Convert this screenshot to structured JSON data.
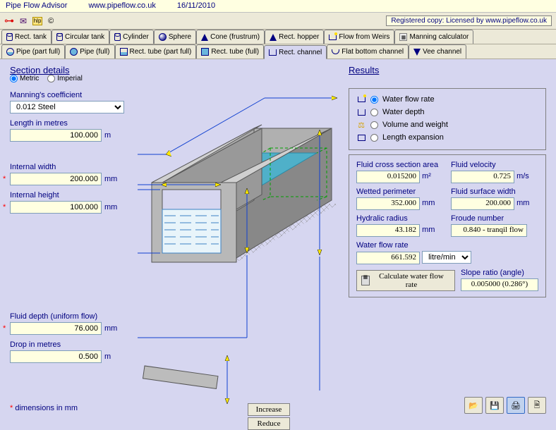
{
  "titlebar": {
    "app": "Pipe Flow Advisor",
    "url": "www.pipeflow.co.uk",
    "date": "16/11/2010"
  },
  "registered": "Registered copy: Licensed by www.pipeflow.co.uk",
  "copyright": "©",
  "tabs_row1": [
    {
      "label": "Rect. tank",
      "icon": "cyl-side"
    },
    {
      "label": "Circular tank",
      "icon": "cyl-side"
    },
    {
      "label": "Cylinder",
      "icon": "cyl-side"
    },
    {
      "label": "Sphere",
      "icon": "sphere"
    },
    {
      "label": "Cone (frustrum)",
      "icon": "cone"
    },
    {
      "label": "Rect. hopper",
      "icon": "cone"
    },
    {
      "label": "Flow from Weirs",
      "icon": "weir"
    },
    {
      "label": "Manning calculator",
      "icon": "manning"
    }
  ],
  "tabs_row2": [
    {
      "label": "Pipe (part full)",
      "icon": "pipe-part"
    },
    {
      "label": "Pipe (full)",
      "icon": "pipe-full"
    },
    {
      "label": "Rect. tube (part full)",
      "icon": "tube-part"
    },
    {
      "label": "Rect. tube (full)",
      "icon": "tube-full"
    },
    {
      "label": "Rect. channel",
      "icon": "channel",
      "active": true
    },
    {
      "label": "Flat bottom channel",
      "icon": "flat"
    },
    {
      "label": "Vee channel",
      "icon": "vee"
    }
  ],
  "section": {
    "title": "Section details",
    "units": {
      "metric": "Metric",
      "imperial": "Imperial"
    }
  },
  "inputs": {
    "manning_label": "Manning's coefficient",
    "manning_value": "0.012 Steel",
    "length_label": "Length  in metres",
    "length_value": "100.000",
    "length_unit": "m",
    "width_label": "Internal width",
    "width_value": "200.000",
    "width_unit": "mm",
    "height_label": "Internal height",
    "height_value": "100.000",
    "height_unit": "mm",
    "depth_label": "Fluid depth (uniform flow)",
    "depth_value": "76.000",
    "depth_unit": "mm",
    "drop_label": "Drop  in metres",
    "drop_value": "0.500",
    "drop_unit": "m"
  },
  "buttons": {
    "increase": "Increase",
    "reduce": "Reduce",
    "calc": "Calculate water flow rate"
  },
  "results": {
    "title": "Results",
    "opts": {
      "flow": "Water flow rate",
      "depth": "Water depth",
      "volume": "Volume and weight",
      "length": "Length expansion"
    },
    "fields": {
      "area_label": "Fluid cross section area",
      "area_value": "0.015200",
      "area_unit": "m²",
      "velocity_label": "Fluid velocity",
      "velocity_value": "0.725",
      "velocity_unit": "m/s",
      "perimeter_label": "Wetted perimeter",
      "perimeter_value": "352.000",
      "perimeter_unit": "mm",
      "surface_label": "Fluid surface width",
      "surface_value": "200.000",
      "surface_unit": "mm",
      "radius_label": "Hydralic radius",
      "radius_value": "43.182",
      "radius_unit": "mm",
      "froude_label": "Froude number",
      "froude_value": "0.840 - tranqil flow",
      "flowrate_label": "Water flow rate",
      "flowrate_value": "661.592",
      "flowrate_unit": "litre/min",
      "slope_label": "Slope ratio (angle)",
      "slope_value": "0.005000 (0.286°)"
    }
  },
  "footer_note": "dimensions in mm",
  "colors": {
    "water": "#4fb0c9",
    "channel": "#a0a0a0",
    "channel_dark": "#787878",
    "arrow": "#ffea00",
    "dimline": "#1040d0",
    "water_line": "#3b82c4",
    "green_dashed": "#00a000"
  }
}
